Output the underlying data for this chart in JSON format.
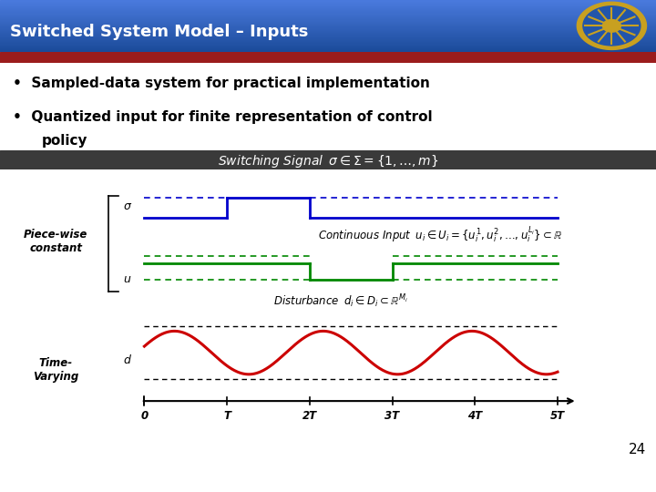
{
  "title": "Switched System Model – Inputs",
  "title_bg": "#2a5caa",
  "title_color": "#ffffff",
  "red_bar_color": "#9b1c1c",
  "body_bg": "#ffffff",
  "bullet1": "Sampled-data system for practical implementation",
  "bullet2": "Quantized input for finite representation of control\n   policy",
  "sigma_color": "#0000cc",
  "u_color": "#008800",
  "d_color": "#cc0000",
  "dark_bar_bg": "#3a3a3a",
  "page_num": "24"
}
